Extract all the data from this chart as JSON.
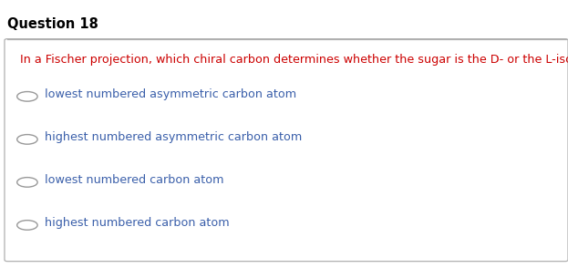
{
  "title": "Question 18",
  "title_color": "#000000",
  "title_fontsize": 10.5,
  "question": "In a Fischer projection, which chiral carbon determines whether the sugar is the D- or the L-isomer?",
  "question_color": "#cc0000",
  "question_fontsize": 9.2,
  "options": [
    "lowest numbered asymmetric carbon atom",
    "highest numbered asymmetric carbon atom",
    "lowest numbered carbon atom",
    "highest numbered carbon atom"
  ],
  "option_color": "#3a5faa",
  "option_fontsize": 9.2,
  "background_color": "#ffffff",
  "box_edge_color": "#b0b0b0",
  "circle_color": "#999999",
  "fig_width": 6.23,
  "fig_height": 2.94,
  "dpi": 100
}
